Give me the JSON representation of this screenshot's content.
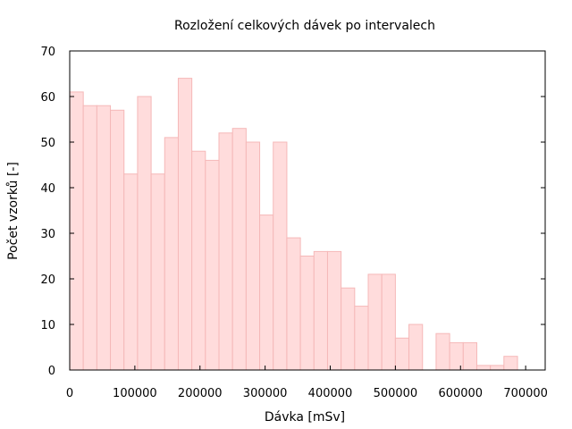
{
  "chart_data": {
    "type": "bar",
    "title": "Rozložení celkových dávek po intervalech",
    "xlabel": "Dávka [mSv]",
    "ylabel": "Počet vzorků [-]",
    "xlim": [
      0,
      730000
    ],
    "ylim": [
      0,
      70
    ],
    "bin_width": 20833,
    "x_ticks": [
      0,
      100000,
      200000,
      300000,
      400000,
      500000,
      600000,
      700000
    ],
    "y_ticks": [
      0,
      10,
      20,
      30,
      40,
      50,
      60,
      70
    ],
    "bins": [
      {
        "x0": 0,
        "value": 61
      },
      {
        "x0": 20833,
        "value": 58
      },
      {
        "x0": 41667,
        "value": 58
      },
      {
        "x0": 62500,
        "value": 57
      },
      {
        "x0": 83333,
        "value": 43
      },
      {
        "x0": 104167,
        "value": 60
      },
      {
        "x0": 125000,
        "value": 43
      },
      {
        "x0": 145833,
        "value": 51
      },
      {
        "x0": 166667,
        "value": 64
      },
      {
        "x0": 187500,
        "value": 48
      },
      {
        "x0": 208333,
        "value": 46
      },
      {
        "x0": 229167,
        "value": 52
      },
      {
        "x0": 250000,
        "value": 53
      },
      {
        "x0": 270833,
        "value": 50
      },
      {
        "x0": 291667,
        "value": 34
      },
      {
        "x0": 312500,
        "value": 50
      },
      {
        "x0": 333333,
        "value": 29
      },
      {
        "x0": 354167,
        "value": 25
      },
      {
        "x0": 375000,
        "value": 26
      },
      {
        "x0": 395833,
        "value": 26
      },
      {
        "x0": 416667,
        "value": 18
      },
      {
        "x0": 437500,
        "value": 14
      },
      {
        "x0": 458333,
        "value": 21
      },
      {
        "x0": 479167,
        "value": 21
      },
      {
        "x0": 500000,
        "value": 7
      },
      {
        "x0": 520833,
        "value": 10
      },
      {
        "x0": 541667,
        "value": 0
      },
      {
        "x0": 562500,
        "value": 8
      },
      {
        "x0": 583333,
        "value": 6
      },
      {
        "x0": 604167,
        "value": 6
      },
      {
        "x0": 625000,
        "value": 1
      },
      {
        "x0": 645833,
        "value": 1
      },
      {
        "x0": 666667,
        "value": 3
      }
    ],
    "grid": false,
    "legend": "none",
    "colors": {
      "bar_fill": "#ffdcdc",
      "bar_stroke": "#f5b8b8"
    }
  }
}
